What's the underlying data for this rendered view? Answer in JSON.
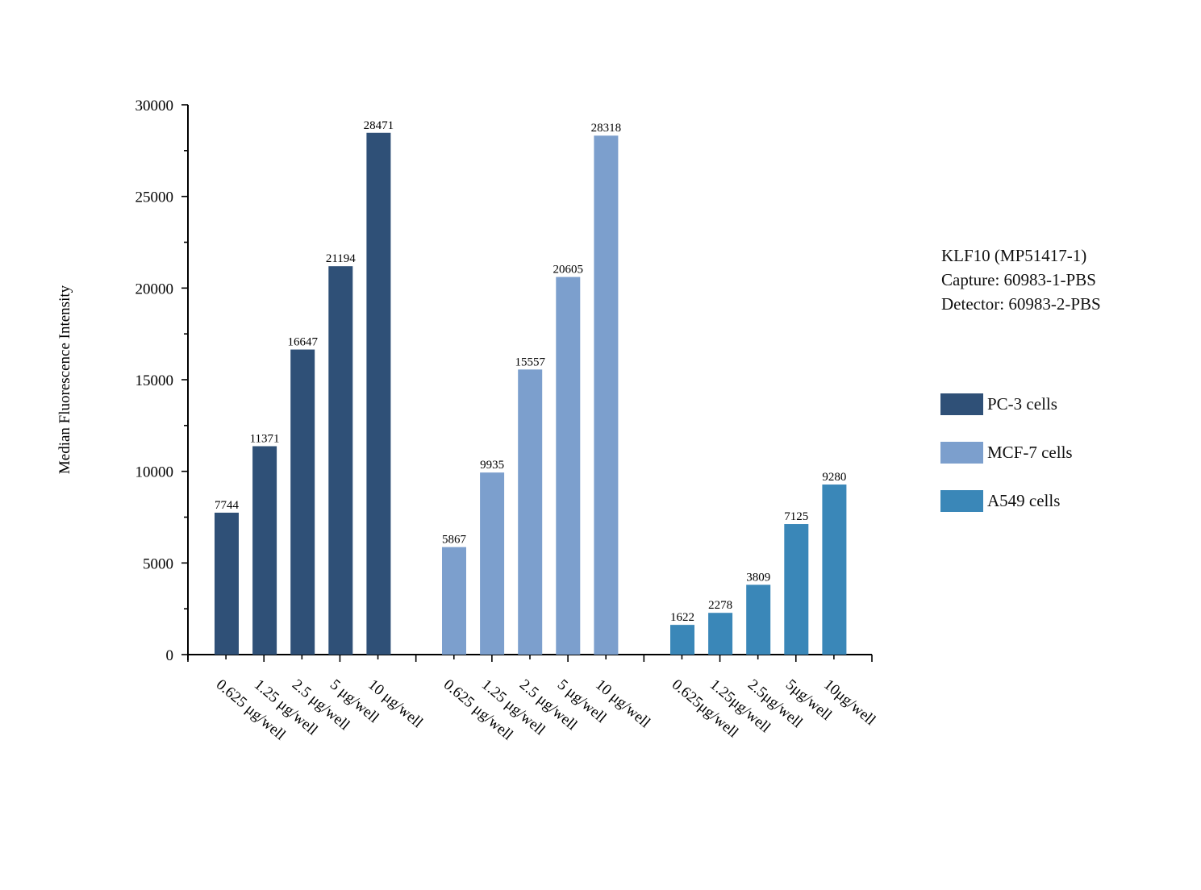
{
  "chart_data": {
    "type": "bar",
    "ylabel": "Median Fluorescence Intensity",
    "ylim": [
      0,
      30000
    ],
    "y_ticks": [
      "0",
      "5000",
      "10000",
      "15000",
      "20000",
      "25000",
      "30000"
    ],
    "groups": [
      {
        "name": "PC-3 cells",
        "color": "#2f5077",
        "categories": [
          "0.625 μg/well",
          "1.25 μg/well",
          "2.5 μg/well",
          "5 μg/well",
          "10 μg/well"
        ],
        "values": [
          7744,
          11371,
          16647,
          21194,
          28471
        ]
      },
      {
        "name": "MCF-7 cells",
        "color": "#7c9fcd",
        "categories": [
          "0.625 μg/well",
          "1.25 μg/well",
          "2.5 μg/well",
          "5 μg/well",
          "10 μg/well"
        ],
        "values": [
          5867,
          9935,
          15557,
          20605,
          28318
        ]
      },
      {
        "name": "A549 cells",
        "color": "#3a87b8",
        "categories": [
          "0.625μg/well",
          "1.25μg/well",
          "2.5μg/well",
          "5μg/well",
          "10μg/well"
        ],
        "values": [
          1622,
          2278,
          3809,
          7125,
          9280
        ]
      }
    ],
    "legend_position": "right",
    "grid": false
  },
  "info": {
    "line1": "KLF10 (MP51417-1)",
    "line2": "Capture: 60983-1-PBS",
    "line3": "Detector: 60983-2-PBS"
  },
  "legend": [
    {
      "label": "PC-3 cells",
      "color": "#2f5077"
    },
    {
      "label": "MCF-7 cells",
      "color": "#7c9fcd"
    },
    {
      "label": "A549 cells",
      "color": "#3a87b8"
    }
  ]
}
